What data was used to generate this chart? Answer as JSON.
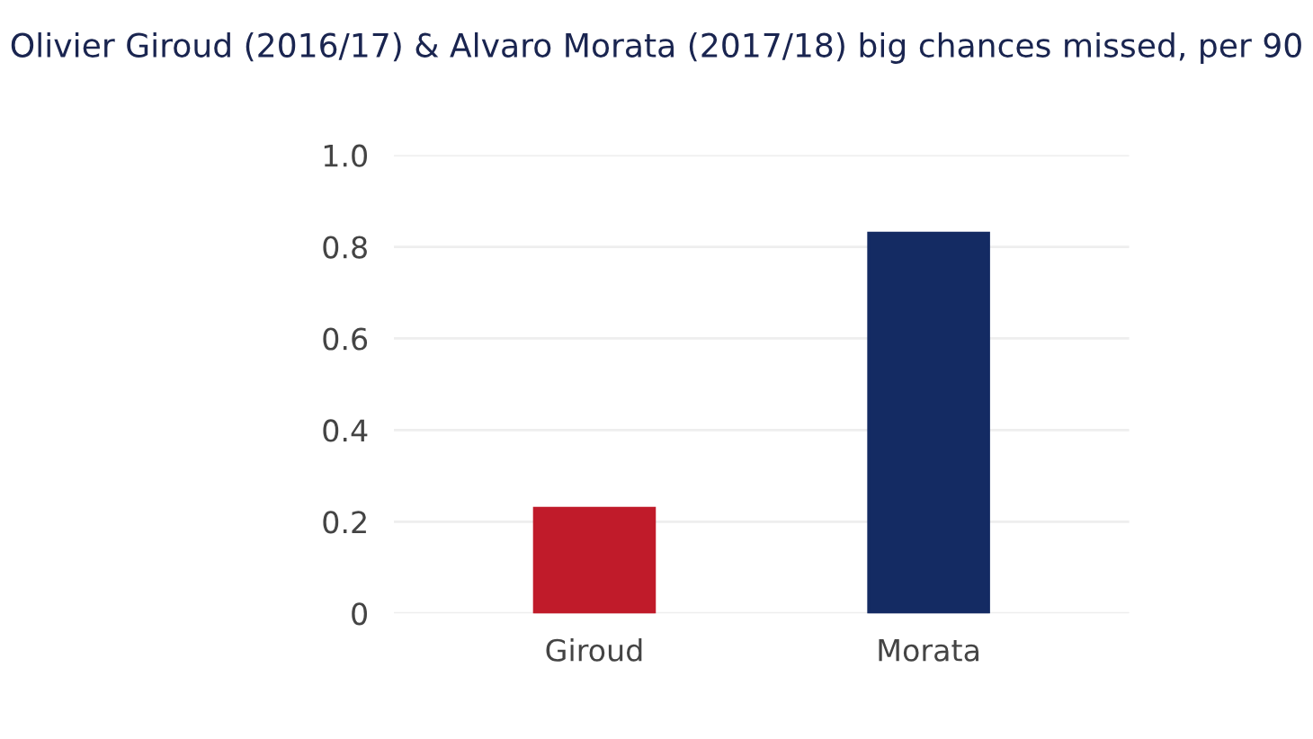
{
  "chart_data": {
    "type": "bar",
    "title": "Olivier Giroud (2016/17) & Alvaro Morata (2017/18) big chances missed, per 90",
    "categories": [
      "Giroud",
      "Morata"
    ],
    "values": [
      0.23,
      0.83
    ],
    "colors": [
      "#c01b2a",
      "#142b63"
    ],
    "ylim": [
      0,
      1.0
    ],
    "yticks": [
      0,
      0.2,
      0.4,
      0.6,
      0.8,
      {
        "value": 1.0,
        "label": "1.0"
      }
    ],
    "grid": "y"
  }
}
